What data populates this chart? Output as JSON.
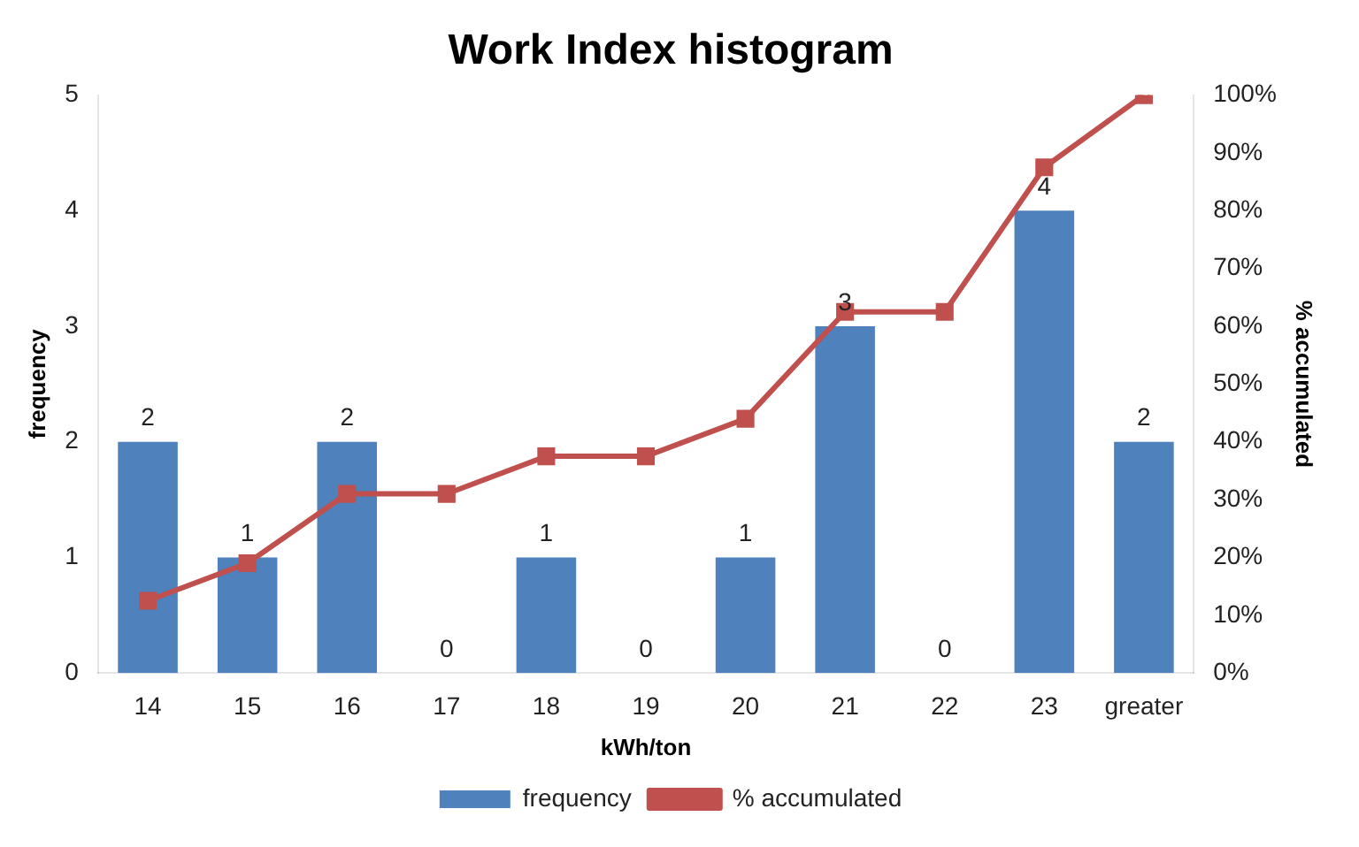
{
  "chart_data": {
    "type": "bar",
    "title": "Work Index histogram",
    "xlabel": "kWh/ton",
    "ylabel": "frequency",
    "y2label": "% accumulated",
    "categories": [
      "14",
      "15",
      "16",
      "17",
      "18",
      "19",
      "20",
      "21",
      "22",
      "23",
      "greater"
    ],
    "series": [
      {
        "name": "frequency",
        "color": "#4f81bd",
        "values": [
          2,
          1,
          2,
          0,
          1,
          0,
          1,
          3,
          0,
          4,
          2
        ],
        "value_labels": [
          "2",
          "1",
          "2",
          "0",
          "1",
          "0",
          "1",
          "3",
          "0",
          "4",
          "2"
        ]
      },
      {
        "name": "% accumulated",
        "type": "line",
        "axis": "y2",
        "color": "#c0504d",
        "marker": "square",
        "values": [
          12.5,
          19,
          31,
          31,
          37.5,
          37.5,
          44,
          62.5,
          62.5,
          87.5,
          100
        ]
      }
    ],
    "ylim": [
      0,
      5
    ],
    "yticks": [
      0,
      1,
      2,
      3,
      4,
      5
    ],
    "y2lim": [
      0,
      100
    ],
    "y2ticks": [
      {
        "value": 0,
        "label": "0%"
      },
      {
        "value": 10,
        "label": "10%"
      },
      {
        "value": 20,
        "label": "20%"
      },
      {
        "value": 30,
        "label": "30%"
      },
      {
        "value": 40,
        "label": "40%"
      },
      {
        "value": 50,
        "label": "50%"
      },
      {
        "value": 60,
        "label": "60%"
      },
      {
        "value": 70,
        "label": "70%"
      },
      {
        "value": 80,
        "label": "80%"
      },
      {
        "value": 90,
        "label": "90%"
      },
      {
        "value": 100,
        "label": "100%"
      }
    ],
    "legend": "bottom"
  }
}
